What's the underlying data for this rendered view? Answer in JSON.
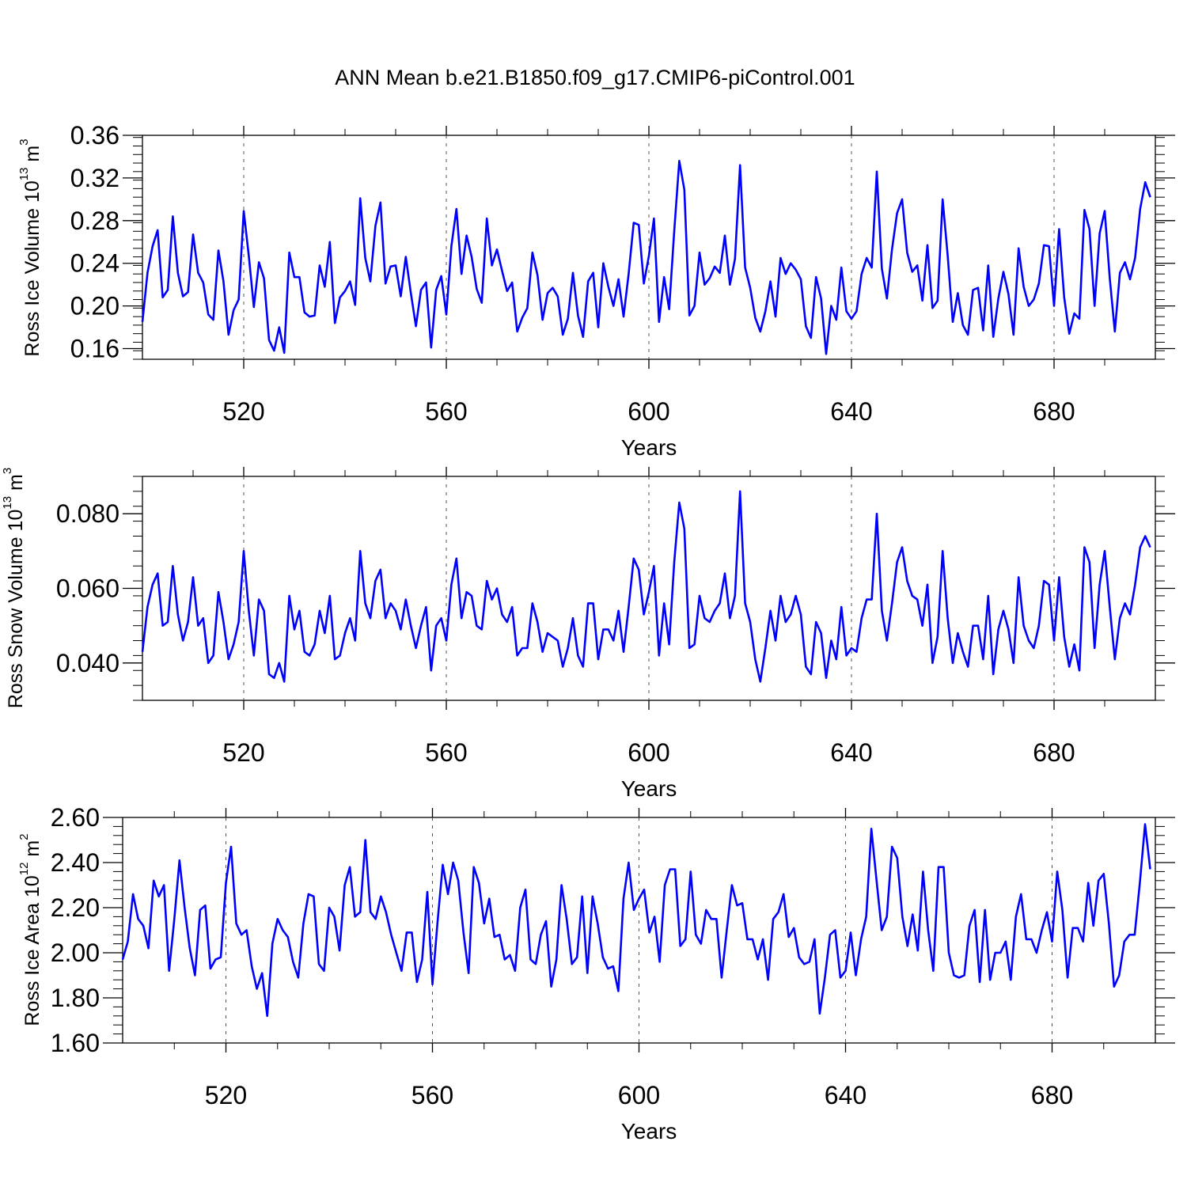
{
  "figure": {
    "title": "ANN Mean b.e21.B1850.f09_g17.CMIP6-piControl.001",
    "line_color": "#0000ff",
    "grid_color": "#555555"
  },
  "chart_data": [
    {
      "type": "line",
      "xlabel": "Years",
      "ylabel_main": "Ross Ice Volume 10",
      "ylabel_exp": "13",
      "ylabel_unit": " m",
      "ylabel_unit_exp": "3",
      "xlim": [
        500,
        700
      ],
      "ylim": [
        0.15,
        0.36
      ],
      "xticks": [
        520,
        560,
        600,
        640,
        680
      ],
      "xtick_labels": [
        "520",
        "560",
        "600",
        "640",
        "680"
      ],
      "yticks": [
        0.16,
        0.2,
        0.24,
        0.28,
        0.32,
        0.36
      ],
      "ytick_labels": [
        "0.16",
        "0.20",
        "0.24",
        "0.28",
        "0.32",
        "0.36"
      ],
      "x_start": 500,
      "values": [
        0.185,
        0.231,
        0.256,
        0.271,
        0.208,
        0.215,
        0.284,
        0.231,
        0.209,
        0.213,
        0.267,
        0.231,
        0.222,
        0.192,
        0.187,
        0.252,
        0.223,
        0.173,
        0.196,
        0.206,
        0.289,
        0.247,
        0.199,
        0.241,
        0.226,
        0.168,
        0.158,
        0.18,
        0.156,
        0.25,
        0.227,
        0.227,
        0.194,
        0.19,
        0.191,
        0.238,
        0.218,
        0.26,
        0.184,
        0.208,
        0.214,
        0.223,
        0.201,
        0.301,
        0.245,
        0.223,
        0.275,
        0.297,
        0.221,
        0.237,
        0.238,
        0.209,
        0.246,
        0.212,
        0.181,
        0.215,
        0.222,
        0.161,
        0.215,
        0.228,
        0.192,
        0.256,
        0.291,
        0.23,
        0.266,
        0.246,
        0.216,
        0.203,
        0.282,
        0.238,
        0.253,
        0.233,
        0.214,
        0.222,
        0.176,
        0.189,
        0.198,
        0.25,
        0.229,
        0.187,
        0.212,
        0.217,
        0.209,
        0.173,
        0.188,
        0.231,
        0.191,
        0.171,
        0.223,
        0.231,
        0.18,
        0.24,
        0.218,
        0.2,
        0.225,
        0.19,
        0.23,
        0.278,
        0.276,
        0.221,
        0.247,
        0.282,
        0.185,
        0.227,
        0.197,
        0.27,
        0.336,
        0.309,
        0.191,
        0.2,
        0.25,
        0.22,
        0.226,
        0.237,
        0.231,
        0.266,
        0.22,
        0.244,
        0.332,
        0.236,
        0.217,
        0.189,
        0.176,
        0.195,
        0.223,
        0.19,
        0.245,
        0.23,
        0.24,
        0.234,
        0.225,
        0.181,
        0.17,
        0.227,
        0.207,
        0.155,
        0.2,
        0.187,
        0.236,
        0.195,
        0.188,
        0.195,
        0.23,
        0.245,
        0.236,
        0.326,
        0.235,
        0.207,
        0.253,
        0.287,
        0.3,
        0.25,
        0.232,
        0.238,
        0.205,
        0.257,
        0.198,
        0.205,
        0.3,
        0.247,
        0.185,
        0.212,
        0.182,
        0.173,
        0.215,
        0.217,
        0.177,
        0.238,
        0.171,
        0.207,
        0.232,
        0.211,
        0.173,
        0.254,
        0.218,
        0.2,
        0.206,
        0.221,
        0.257,
        0.256,
        0.2,
        0.272,
        0.208,
        0.174,
        0.193,
        0.188,
        0.29,
        0.272,
        0.2,
        0.268,
        0.289,
        0.226,
        0.176,
        0.231,
        0.241,
        0.225,
        0.245,
        0.291,
        0.316,
        0.302
      ]
    },
    {
      "type": "line",
      "xlabel": "Years",
      "ylabel_main": "Ross Snow Volume 10",
      "ylabel_exp": "13",
      "ylabel_unit": " m",
      "ylabel_unit_exp": "3",
      "xlim": [
        500,
        700
      ],
      "ylim": [
        0.03,
        0.09
      ],
      "xticks": [
        520,
        560,
        600,
        640,
        680
      ],
      "xtick_labels": [
        "520",
        "560",
        "600",
        "640",
        "680"
      ],
      "yticks": [
        0.04,
        0.06,
        0.08
      ],
      "ytick_labels": [
        "0.040",
        "0.060",
        "0.080"
      ],
      "x_start": 500,
      "values": [
        0.043,
        0.055,
        0.061,
        0.064,
        0.05,
        0.051,
        0.066,
        0.053,
        0.046,
        0.051,
        0.063,
        0.05,
        0.052,
        0.04,
        0.042,
        0.059,
        0.051,
        0.041,
        0.045,
        0.051,
        0.07,
        0.054,
        0.042,
        0.057,
        0.054,
        0.037,
        0.036,
        0.04,
        0.035,
        0.058,
        0.049,
        0.054,
        0.043,
        0.042,
        0.045,
        0.054,
        0.048,
        0.058,
        0.041,
        0.042,
        0.048,
        0.052,
        0.046,
        0.07,
        0.056,
        0.052,
        0.062,
        0.065,
        0.052,
        0.056,
        0.054,
        0.049,
        0.057,
        0.05,
        0.044,
        0.05,
        0.055,
        0.038,
        0.05,
        0.052,
        0.046,
        0.061,
        0.068,
        0.052,
        0.059,
        0.058,
        0.05,
        0.049,
        0.062,
        0.057,
        0.06,
        0.053,
        0.051,
        0.055,
        0.042,
        0.044,
        0.044,
        0.056,
        0.051,
        0.043,
        0.048,
        0.047,
        0.046,
        0.039,
        0.044,
        0.052,
        0.042,
        0.039,
        0.056,
        0.056,
        0.041,
        0.049,
        0.049,
        0.046,
        0.054,
        0.043,
        0.055,
        0.068,
        0.065,
        0.053,
        0.059,
        0.066,
        0.042,
        0.056,
        0.045,
        0.067,
        0.083,
        0.076,
        0.044,
        0.045,
        0.058,
        0.052,
        0.051,
        0.054,
        0.056,
        0.064,
        0.052,
        0.058,
        0.086,
        0.056,
        0.051,
        0.041,
        0.035,
        0.044,
        0.054,
        0.046,
        0.058,
        0.051,
        0.053,
        0.058,
        0.053,
        0.039,
        0.037,
        0.051,
        0.048,
        0.036,
        0.046,
        0.041,
        0.055,
        0.042,
        0.044,
        0.043,
        0.052,
        0.057,
        0.057,
        0.08,
        0.054,
        0.046,
        0.056,
        0.067,
        0.071,
        0.062,
        0.058,
        0.057,
        0.05,
        0.061,
        0.04,
        0.047,
        0.07,
        0.052,
        0.04,
        0.048,
        0.043,
        0.039,
        0.05,
        0.05,
        0.041,
        0.058,
        0.037,
        0.049,
        0.054,
        0.049,
        0.04,
        0.063,
        0.05,
        0.046,
        0.044,
        0.05,
        0.062,
        0.061,
        0.046,
        0.063,
        0.047,
        0.039,
        0.045,
        0.038,
        0.071,
        0.067,
        0.044,
        0.061,
        0.07,
        0.055,
        0.041,
        0.052,
        0.056,
        0.053,
        0.061,
        0.071,
        0.074,
        0.071
      ]
    },
    {
      "type": "line",
      "xlabel": "Years",
      "ylabel_main": "Ross Ice Area 10",
      "ylabel_exp": "12",
      "ylabel_unit": " m",
      "ylabel_unit_exp": "2",
      "xlim": [
        500,
        700
      ],
      "ylim": [
        1.6,
        2.6
      ],
      "xticks": [
        520,
        560,
        600,
        640,
        680
      ],
      "xtick_labels": [
        "520",
        "560",
        "600",
        "640",
        "680"
      ],
      "yticks": [
        1.6,
        1.8,
        2.0,
        2.2,
        2.4,
        2.6
      ],
      "ytick_labels": [
        "1.60",
        "1.80",
        "2.00",
        "2.20",
        "2.40",
        "2.60"
      ],
      "x_start": 500,
      "values": [
        1.97,
        2.05,
        2.26,
        2.15,
        2.12,
        2.02,
        2.32,
        2.25,
        2.3,
        1.92,
        2.15,
        2.41,
        2.2,
        2.02,
        1.9,
        2.19,
        2.21,
        1.93,
        1.97,
        1.98,
        2.31,
        2.47,
        2.13,
        2.08,
        2.1,
        1.94,
        1.84,
        1.91,
        1.72,
        2.04,
        2.15,
        2.1,
        2.07,
        1.96,
        1.89,
        2.13,
        2.26,
        2.25,
        1.95,
        1.92,
        2.2,
        2.16,
        2.01,
        2.3,
        2.38,
        2.16,
        2.18,
        2.5,
        2.18,
        2.15,
        2.25,
        2.18,
        2.08,
        2.0,
        1.92,
        2.09,
        2.09,
        1.87,
        1.97,
        2.27,
        1.86,
        2.14,
        2.39,
        2.26,
        2.4,
        2.32,
        2.09,
        1.91,
        2.38,
        2.31,
        2.13,
        2.24,
        2.07,
        2.08,
        1.97,
        1.99,
        1.92,
        2.2,
        2.28,
        1.97,
        1.95,
        2.08,
        2.14,
        1.85,
        1.97,
        2.3,
        2.15,
        1.95,
        1.98,
        2.25,
        1.91,
        2.25,
        2.13,
        1.98,
        1.93,
        1.94,
        1.83,
        2.24,
        2.4,
        2.19,
        2.24,
        2.28,
        2.09,
        2.16,
        1.96,
        2.3,
        2.37,
        2.37,
        2.03,
        2.06,
        2.36,
        2.08,
        2.04,
        2.19,
        2.15,
        2.15,
        1.89,
        2.1,
        2.3,
        2.21,
        2.22,
        2.06,
        2.06,
        1.97,
        2.06,
        1.88,
        2.15,
        2.18,
        2.26,
        2.07,
        2.11,
        1.98,
        1.95,
        1.96,
        2.06,
        1.73,
        1.89,
        2.08,
        2.1,
        1.89,
        1.92,
        2.09,
        1.9,
        2.06,
        2.16,
        2.55,
        2.32,
        2.1,
        2.16,
        2.47,
        2.42,
        2.16,
        2.03,
        2.17,
        2.01,
        2.36,
        2.1,
        1.92,
        2.38,
        2.38,
        2.0,
        1.9,
        1.89,
        1.9,
        2.12,
        2.19,
        1.87,
        2.19,
        1.88,
        2.0,
        2.0,
        2.05,
        1.88,
        2.16,
        2.26,
        2.06,
        2.06,
        2.0,
        2.1,
        2.18,
        2.05,
        2.36,
        2.19,
        1.89,
        2.11,
        2.11,
        2.05,
        2.31,
        2.12,
        2.32,
        2.35,
        2.13,
        1.85,
        1.9,
        2.05,
        2.08,
        2.08,
        2.31,
        2.57,
        2.37
      ]
    }
  ]
}
